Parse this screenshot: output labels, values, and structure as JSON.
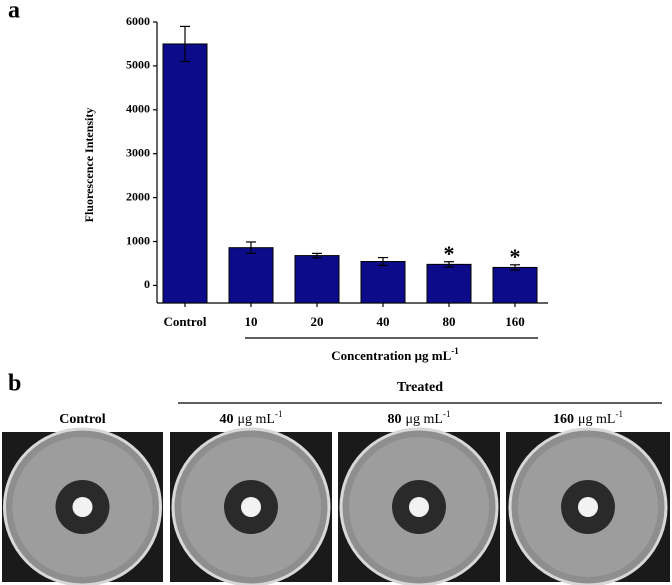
{
  "panel_labels": [
    "a",
    "b"
  ],
  "chart_data": {
    "type": "bar",
    "y_label": "Fluorescence Intensity",
    "x_label": {
      "text": "Concentration μg mL",
      "sup": "-1"
    },
    "categories": [
      "Control",
      "10",
      "20",
      "40",
      "80",
      "160"
    ],
    "values": [
      5500,
      860,
      680,
      545,
      480,
      410
    ],
    "errors": [
      400,
      130,
      50,
      90,
      60,
      60
    ],
    "markers": [
      null,
      null,
      null,
      null,
      "*",
      "*"
    ],
    "color": "#0c0c8a",
    "ylim": [
      -400,
      6000
    ],
    "yticks": [
      0,
      1000,
      2000,
      3000,
      4000,
      5000,
      6000
    ]
  },
  "panel_b": {
    "group_label": "Treated",
    "plates": [
      {
        "label": "Control"
      },
      {
        "value": "40",
        "unit": "μg mL",
        "sup": "-1"
      },
      {
        "value": "80",
        "unit": "μg mL",
        "sup": "-1"
      },
      {
        "value": "160",
        "unit": "μg mL",
        "sup": "-1"
      }
    ]
  }
}
